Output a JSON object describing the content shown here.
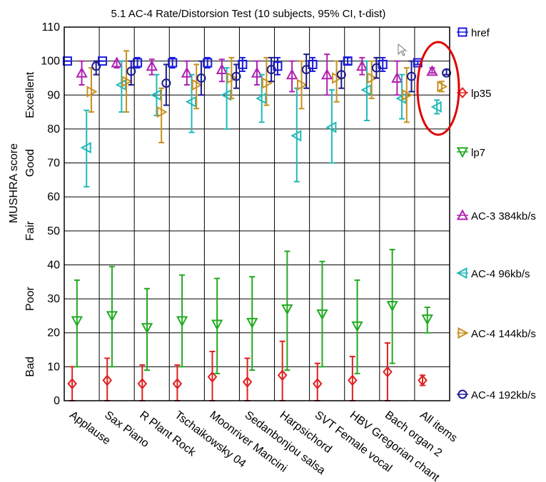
{
  "chart_data": {
    "type": "scatter",
    "title": "5.1 AC-4 Rate/Distorsion Test (10 subjects, 95% CI, t-dist)",
    "ylabel": "MUSHRA score",
    "ylim": [
      0,
      110
    ],
    "yticks": [
      0,
      10,
      20,
      30,
      40,
      50,
      60,
      70,
      80,
      90,
      100,
      110
    ],
    "grid": true,
    "legend_position": "right",
    "quality_labels": [
      {
        "text": "Excellent",
        "center": 90
      },
      {
        "text": "Good",
        "center": 70
      },
      {
        "text": "Fair",
        "center": 50
      },
      {
        "text": "Poor",
        "center": 30
      },
      {
        "text": "Bad",
        "center": 10
      }
    ],
    "categories": [
      "Applause",
      "Sax Piano",
      "R Plant Rock",
      "Tschaikowsky 04",
      "Moonriver Mancini",
      "Sedanbonjou salsa",
      "Harpsichord",
      "SVT Female vocal",
      "HBV Gregorian chant",
      "Bach organ 2",
      "All items"
    ],
    "series": [
      {
        "name": "href",
        "color": "#1a1ae0",
        "marker": "square",
        "values": [
          100,
          100,
          99.5,
          99.5,
          99.5,
          99,
          98.5,
          99,
          100,
          99,
          99.5
        ],
        "ci": [
          [
            100,
            100
          ],
          [
            100,
            100
          ],
          [
            98,
            101
          ],
          [
            98,
            101
          ],
          [
            98,
            101
          ],
          [
            97,
            101
          ],
          [
            96,
            101
          ],
          [
            97,
            101
          ],
          [
            99,
            101
          ],
          [
            97,
            101
          ],
          [
            99,
            100
          ]
        ]
      },
      {
        "name": "lp35",
        "color": "#e02020",
        "marker": "diamond",
        "values": [
          5,
          6,
          5,
          5,
          7,
          5.5,
          7.5,
          5,
          6,
          8.5,
          6
        ],
        "ci": [
          [
            0,
            10
          ],
          [
            0,
            12.5
          ],
          [
            0,
            10.5
          ],
          [
            0,
            10.5
          ],
          [
            0,
            14.5
          ],
          [
            0,
            12.5
          ],
          [
            0,
            17.5
          ],
          [
            0,
            11
          ],
          [
            0,
            13
          ],
          [
            0,
            17
          ],
          [
            4.5,
            7.5
          ]
        ]
      },
      {
        "name": "lp7",
        "color": "#22aa22",
        "marker": "tri-down",
        "values": [
          23.5,
          25,
          21.5,
          23.5,
          22.5,
          23,
          27,
          25.5,
          22,
          28,
          24
        ],
        "ci": [
          [
            10,
            35.5
          ],
          [
            10,
            39.5
          ],
          [
            9,
            33
          ],
          [
            10,
            37
          ],
          [
            8,
            36
          ],
          [
            9,
            36.5
          ],
          [
            9,
            44
          ],
          [
            10,
            41
          ],
          [
            8,
            35.5
          ],
          [
            11,
            44.5
          ],
          [
            20,
            27.5
          ]
        ]
      },
      {
        "name": "AC-3 384kb/s",
        "color": "#b020b0",
        "marker": "tri-up",
        "values": [
          96.5,
          99.5,
          98.5,
          96.5,
          97.5,
          96.5,
          96,
          96,
          98.5,
          95,
          97
        ],
        "ci": [
          [
            93,
            100
          ],
          [
            98,
            100
          ],
          [
            96,
            100.5
          ],
          [
            93,
            100
          ],
          [
            94,
            100.5
          ],
          [
            93,
            100
          ],
          [
            91,
            100
          ],
          [
            90,
            102
          ],
          [
            96,
            101
          ],
          [
            90,
            100
          ],
          [
            96.5,
            98
          ]
        ]
      },
      {
        "name": "AC-4 96kb/s",
        "color": "#22b8b8",
        "marker": "tri-left",
        "values": [
          74.5,
          93,
          90,
          88,
          90,
          89,
          78,
          80.5,
          91.5,
          89,
          86.5
        ],
        "ci": [
          [
            63,
            85.5
          ],
          [
            85,
            100
          ],
          [
            84,
            96
          ],
          [
            79,
            96
          ],
          [
            80,
            98
          ],
          [
            82,
            96
          ],
          [
            64.5,
            92
          ],
          [
            70,
            91.5
          ],
          [
            82.5,
            100
          ],
          [
            83,
            96
          ],
          [
            84.5,
            88.5
          ]
        ]
      },
      {
        "name": "AC-4 144kb/s",
        "color": "#c89020",
        "marker": "tri-right",
        "values": [
          91,
          94,
          85,
          93,
          95,
          93.5,
          93,
          95,
          95,
          90,
          92.5
        ],
        "ci": [
          [
            85,
            98
          ],
          [
            85,
            103
          ],
          [
            76,
            92
          ],
          [
            86,
            99
          ],
          [
            89,
            101
          ],
          [
            87,
            101
          ],
          [
            86,
            100
          ],
          [
            88,
            100
          ],
          [
            89,
            100
          ],
          [
            82,
            98
          ],
          [
            91,
            94
          ]
        ]
      },
      {
        "name": "AC-4 192kb/s",
        "color": "#1a1a90",
        "marker": "circle",
        "values": [
          98.5,
          97,
          93.5,
          95,
          95.5,
          97.5,
          97.5,
          96,
          98,
          95.5,
          96.5
        ],
        "ci": [
          [
            96,
            100
          ],
          [
            93,
            100
          ],
          [
            87,
            99
          ],
          [
            90,
            100
          ],
          [
            92,
            99
          ],
          [
            94,
            101
          ],
          [
            92,
            102
          ],
          [
            92,
            100
          ],
          [
            95,
            101
          ],
          [
            91,
            100
          ],
          [
            96,
            97.5
          ]
        ]
      }
    ]
  },
  "legend": [
    {
      "label": "href",
      "color": "#1a1ae0",
      "marker": "square"
    },
    {
      "label": "lp35",
      "color": "#e02020",
      "marker": "diamond"
    },
    {
      "label": "lp7",
      "color": "#22aa22",
      "marker": "tri-down"
    },
    {
      "label": "AC-3 384kb/s",
      "color": "#b020b0",
      "marker": "tri-up"
    },
    {
      "label": "AC-4 96kb/s",
      "color": "#22b8b8",
      "marker": "tri-left"
    },
    {
      "label": "AC-4 144kb/s",
      "color": "#c89020",
      "marker": "tri-right"
    },
    {
      "label": "AC-4 192kb/s",
      "color": "#1a1a90",
      "marker": "circle"
    }
  ],
  "highlight": {
    "target": "All items",
    "color": "#e00000",
    "shape": "ellipse"
  },
  "cursor_icon": "mouse-pointer-icon"
}
